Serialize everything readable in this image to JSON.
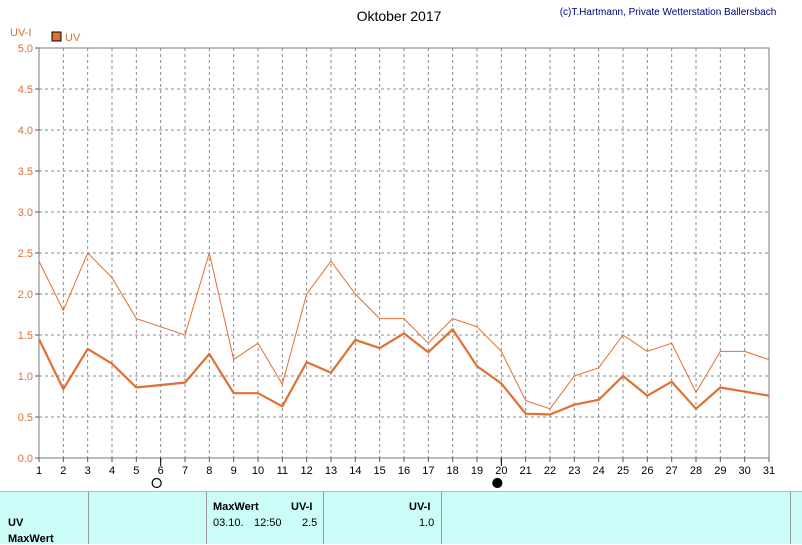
{
  "chart_data": {
    "type": "line",
    "title": "Oktober 2017",
    "copyright": "(c)T.Hartmann, Private Wetterstation Ballersbach",
    "ylabel": "UV-I",
    "ylim": [
      0,
      5
    ],
    "yticks": [
      "0.0",
      "0.5",
      "1.0",
      "1.5",
      "2.0",
      "2.5",
      "3.0",
      "3.5",
      "4.0",
      "4.5",
      "5.0"
    ],
    "x": [
      1,
      2,
      3,
      4,
      5,
      6,
      7,
      8,
      9,
      10,
      11,
      12,
      13,
      14,
      15,
      16,
      17,
      18,
      19,
      20,
      21,
      22,
      23,
      24,
      25,
      26,
      27,
      28,
      29,
      30,
      31
    ],
    "grid": true,
    "legend": {
      "position": "top-left",
      "label": "UV"
    },
    "moon_markers": [
      {
        "day": 6,
        "phase": "full"
      },
      {
        "day": 20,
        "phase": "new"
      }
    ],
    "series": [
      {
        "name": "UV",
        "role": "max",
        "color": "#e07030",
        "values": [
          2.4,
          1.8,
          2.5,
          2.2,
          1.7,
          1.6,
          1.5,
          2.5,
          1.2,
          1.4,
          0.9,
          2.0,
          2.4,
          2.0,
          1.7,
          1.7,
          1.4,
          1.7,
          1.6,
          1.3,
          0.7,
          0.6,
          1.0,
          1.1,
          1.5,
          1.3,
          1.4,
          0.8,
          1.3,
          1.3,
          1.2
        ]
      },
      {
        "name": "UV",
        "role": "mean",
        "color": "#e07030",
        "values": [
          1.45,
          0.84,
          1.33,
          1.15,
          0.86,
          0.89,
          0.92,
          1.27,
          0.79,
          0.79,
          0.63,
          1.17,
          1.04,
          1.44,
          1.34,
          1.52,
          1.29,
          1.57,
          1.12,
          0.91,
          0.54,
          0.53,
          0.65,
          0.71,
          1.0,
          0.76,
          0.93,
          0.6,
          0.86,
          0.81,
          0.76
        ]
      }
    ]
  },
  "table": {
    "row1_label": "UV",
    "row2_label": "MaxWert",
    "max_header": "MaxWert",
    "unit_header": "UV-I",
    "unit_header2": "UV-I",
    "max_date": "03.10.",
    "max_time": "12:50",
    "max_value": "2.5",
    "mean_value": "1.0"
  }
}
